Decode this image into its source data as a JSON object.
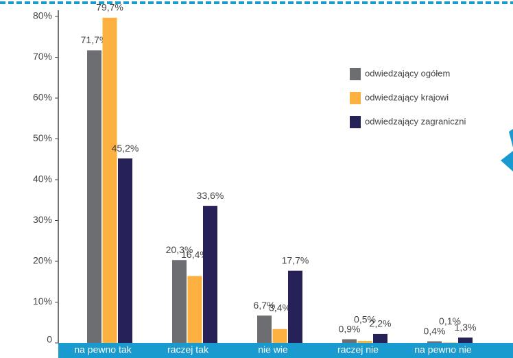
{
  "chart_data": {
    "type": "bar",
    "categories": [
      "na pewno tak",
      "raczej tak",
      "nie wie",
      "raczej nie",
      "na pewno nie"
    ],
    "series": [
      {
        "name": "odwiedzający ogółem",
        "color": "#6d6e71",
        "values": [
          71.7,
          20.3,
          6.7,
          0.9,
          0.4
        ],
        "value_labels": [
          "71,7%",
          "20,3%",
          "6,7%",
          "0,9%",
          "0,4%"
        ]
      },
      {
        "name": "odwiedzający krajowi",
        "color": "#fbb040",
        "values": [
          79.7,
          16.4,
          3.4,
          0.5,
          0.1
        ],
        "value_labels": [
          "79,7%",
          "16,4%",
          "3,4%",
          "0,5%",
          "0,1%"
        ]
      },
      {
        "name": "odwiedzający zagraniczni",
        "color": "#262158",
        "values": [
          45.2,
          33.6,
          17.7,
          2.2,
          1.3
        ],
        "value_labels": [
          "45,2%",
          "33,6%",
          "17,7%",
          "2,2%",
          "1,3%"
        ]
      }
    ],
    "ylim": [
      0,
      80
    ],
    "yticks": [
      0,
      {
        "value": 10,
        "label": "10%"
      },
      {
        "value": 20,
        "label": "20%"
      },
      {
        "value": 30,
        "label": "30%"
      },
      {
        "value": 40,
        "label": "40%"
      },
      {
        "value": 50,
        "label": "50%"
      },
      {
        "value": 60,
        "label": "60%"
      },
      {
        "value": 70,
        "label": "70%"
      },
      {
        "value": 80,
        "label": "80%"
      }
    ],
    "legend": "upper right"
  }
}
